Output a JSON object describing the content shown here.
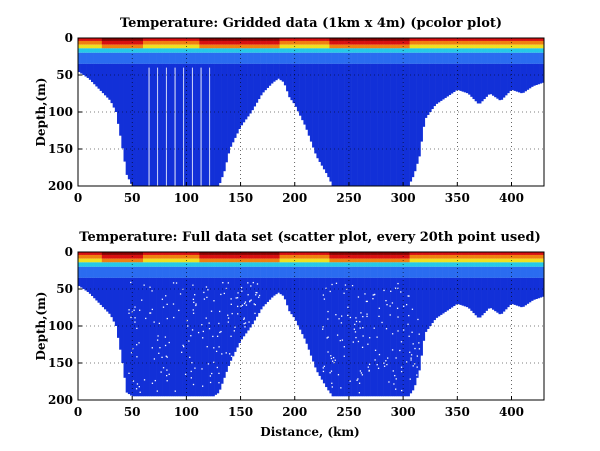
{
  "colors": {
    "deep": "#1230d8",
    "mid": "#2a6cf0",
    "cyan": "#25c9e8",
    "yellow": "#f0e020",
    "orange": "#f08010",
    "red": "#d81010",
    "darkred": "#8a0000",
    "gap": "#ffffff"
  },
  "chart_data": [
    {
      "type": "heatmap",
      "title": "Temperature: Gridded data (1km x 4m) (pcolor plot)",
      "xlabel": "",
      "ylabel": "Depth,(m)",
      "xlim": [
        0,
        430
      ],
      "ylim": [
        200,
        0
      ],
      "y_reversed": true,
      "grid": true,
      "xticks": [
        0,
        50,
        100,
        150,
        200,
        250,
        300,
        350,
        400
      ],
      "yticks": [
        0,
        50,
        100,
        150,
        200
      ],
      "xtick_labels": [
        "0",
        "50",
        "100",
        "150",
        "200",
        "250",
        "300",
        "350",
        "400"
      ],
      "ytick_labels": [
        "0",
        "50",
        "100",
        "150",
        "200"
      ],
      "colorscale": "jet",
      "surface_warm_layer_depth_m": 15,
      "bottom_profile": {
        "x": [
          0,
          10,
          20,
          30,
          35,
          40,
          45,
          50,
          55,
          60,
          70,
          80,
          90,
          100,
          110,
          120,
          125,
          130,
          135,
          140,
          150,
          160,
          170,
          180,
          185,
          190,
          195,
          200,
          210,
          220,
          230,
          235,
          240,
          250,
          260,
          270,
          280,
          290,
          300,
          305,
          310,
          315,
          320,
          330,
          340,
          350,
          360,
          370,
          380,
          390,
          400,
          410,
          420,
          430
        ],
        "depth": [
          45,
          55,
          70,
          85,
          100,
          140,
          185,
          200,
          200,
          200,
          200,
          200,
          200,
          200,
          200,
          200,
          200,
          200,
          180,
          150,
          120,
          100,
          75,
          60,
          55,
          60,
          80,
          90,
          120,
          160,
          185,
          200,
          200,
          200,
          200,
          200,
          200,
          200,
          200,
          200,
          185,
          160,
          110,
          90,
          80,
          70,
          75,
          90,
          75,
          85,
          70,
          75,
          65,
          60
        ]
      }
    },
    {
      "type": "scatter",
      "title": "Temperature: Full data set (scatter plot, every 20th point used)",
      "xlabel": "Distance, (km)",
      "ylabel": "Depth,(m)",
      "xlim": [
        0,
        430
      ],
      "ylim": [
        200,
        0
      ],
      "y_reversed": true,
      "grid": true,
      "xticks": [
        0,
        50,
        100,
        150,
        200,
        250,
        300,
        350,
        400
      ],
      "yticks": [
        0,
        50,
        100,
        150,
        200
      ],
      "xtick_labels": [
        "0",
        "50",
        "100",
        "150",
        "200",
        "250",
        "300",
        "350",
        "400"
      ],
      "ytick_labels": [
        "0",
        "50",
        "100",
        "150",
        "200"
      ],
      "colorscale": "jet",
      "surface_warm_layer_depth_m": 15,
      "bottom_profile": {
        "x": [
          0,
          10,
          20,
          30,
          35,
          40,
          45,
          50,
          60,
          70,
          80,
          90,
          100,
          110,
          120,
          125,
          130,
          135,
          140,
          150,
          160,
          170,
          180,
          185,
          190,
          195,
          200,
          210,
          220,
          230,
          235,
          240,
          250,
          260,
          270,
          280,
          290,
          300,
          305,
          310,
          315,
          320,
          330,
          340,
          350,
          360,
          370,
          380,
          390,
          400,
          410,
          420,
          430
        ],
        "depth": [
          45,
          55,
          70,
          85,
          100,
          140,
          190,
          195,
          195,
          195,
          195,
          195,
          195,
          195,
          195,
          195,
          190,
          170,
          150,
          120,
          100,
          75,
          60,
          55,
          60,
          80,
          90,
          120,
          160,
          185,
          195,
          195,
          195,
          195,
          195,
          195,
          195,
          195,
          195,
          185,
          160,
          110,
          90,
          80,
          70,
          75,
          90,
          75,
          85,
          70,
          75,
          65,
          60
        ]
      }
    }
  ]
}
